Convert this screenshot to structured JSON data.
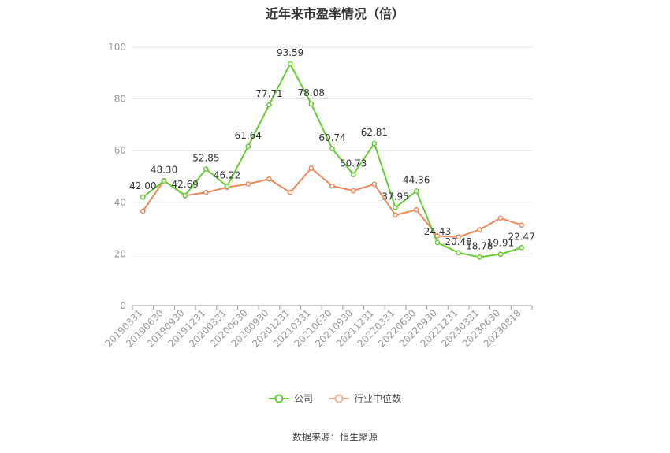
{
  "chart_data": {
    "type": "line",
    "title": "近年来市盈率情况（倍）",
    "categories": [
      "20190331",
      "20190630",
      "20190930",
      "20191231",
      "20200331",
      "20200630",
      "20200930",
      "20201231",
      "20210331",
      "20210630",
      "20210930",
      "20211231",
      "20220331",
      "20220630",
      "20220930",
      "20221231",
      "20230331",
      "20230630",
      "20230818"
    ],
    "series": [
      {
        "name": "公司",
        "color": "#66cc33",
        "labeled": true,
        "values": [
          42.0,
          48.3,
          42.69,
          52.85,
          46.22,
          61.64,
          77.71,
          93.59,
          78.08,
          60.74,
          50.73,
          62.81,
          37.95,
          44.36,
          24.43,
          20.48,
          18.78,
          19.91,
          22.47
        ]
      },
      {
        "name": "行业中位数",
        "color": "#f0875a",
        "labeled": false,
        "values": [
          36.6,
          48.4,
          42.6,
          43.8,
          45.8,
          47.1,
          49.0,
          43.8,
          53.2,
          46.3,
          44.5,
          47.0,
          35.1,
          37.1,
          27.0,
          26.6,
          29.4,
          33.9,
          31.2
        ]
      }
    ],
    "ylim": [
      0,
      100
    ],
    "yticks": [
      0,
      20,
      40,
      60,
      80,
      100
    ],
    "grid": true,
    "legend_position": "bottom-center",
    "source": "数据来源：恒生聚源"
  }
}
